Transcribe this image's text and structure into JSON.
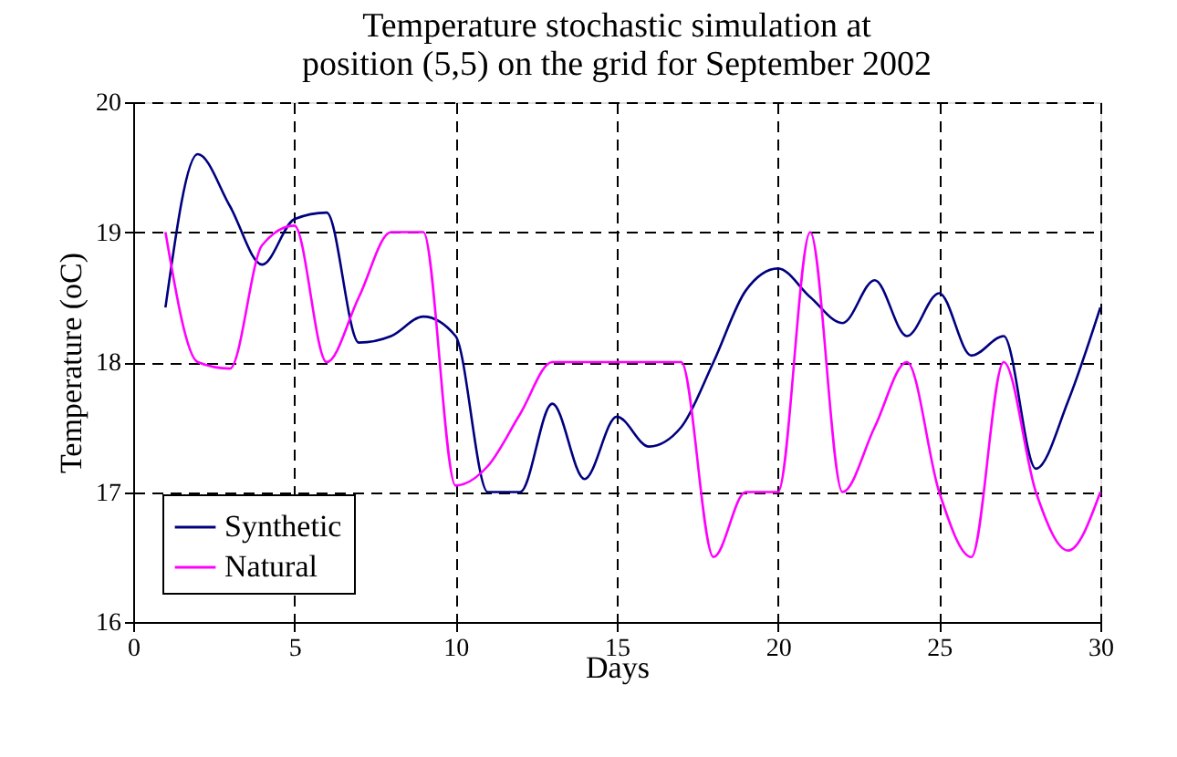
{
  "chart_data": {
    "type": "line",
    "title": [
      "Temperature stochastic simulation at",
      "position (5,5) on the grid for September 2002"
    ],
    "xlabel": "Days",
    "ylabel": "Temperature (oC)",
    "x": [
      1,
      2,
      3,
      4,
      5,
      6,
      7,
      8,
      9,
      10,
      11,
      12,
      13,
      14,
      15,
      16,
      17,
      18,
      19,
      20,
      21,
      22,
      23,
      24,
      25,
      26,
      27,
      28,
      29,
      30
    ],
    "series": [
      {
        "name": "Synthetic",
        "color": "#000080",
        "values": [
          18.42,
          19.6,
          19.2,
          18.75,
          19.1,
          19.15,
          18.15,
          18.2,
          18.35,
          18.2,
          17.0,
          17.0,
          17.68,
          17.1,
          17.58,
          17.35,
          17.5,
          18.0,
          18.55,
          18.72,
          18.5,
          18.3,
          18.63,
          18.2,
          18.53,
          18.05,
          18.2,
          17.18,
          17.7,
          18.42
        ]
      },
      {
        "name": "Natural",
        "color": "#ff00ff",
        "values": [
          19.0,
          18.0,
          17.95,
          18.9,
          19.05,
          18.0,
          18.5,
          19.0,
          19.0,
          17.05,
          17.2,
          17.6,
          18.0,
          18.0,
          18.0,
          18.0,
          18.0,
          16.5,
          17.0,
          17.0,
          19.0,
          17.0,
          17.5,
          18.0,
          17.0,
          16.5,
          18.0,
          17.0,
          16.55,
          17.0
        ]
      }
    ],
    "xlim": [
      0,
      30
    ],
    "xticks": [
      0,
      5,
      10,
      15,
      20,
      25,
      30
    ],
    "ylim": [
      16,
      20
    ],
    "yticks": [
      16,
      17,
      18,
      19,
      20
    ],
    "grid": true,
    "legend": "bottom left",
    "marker": "none",
    "line_style": "solid"
  }
}
